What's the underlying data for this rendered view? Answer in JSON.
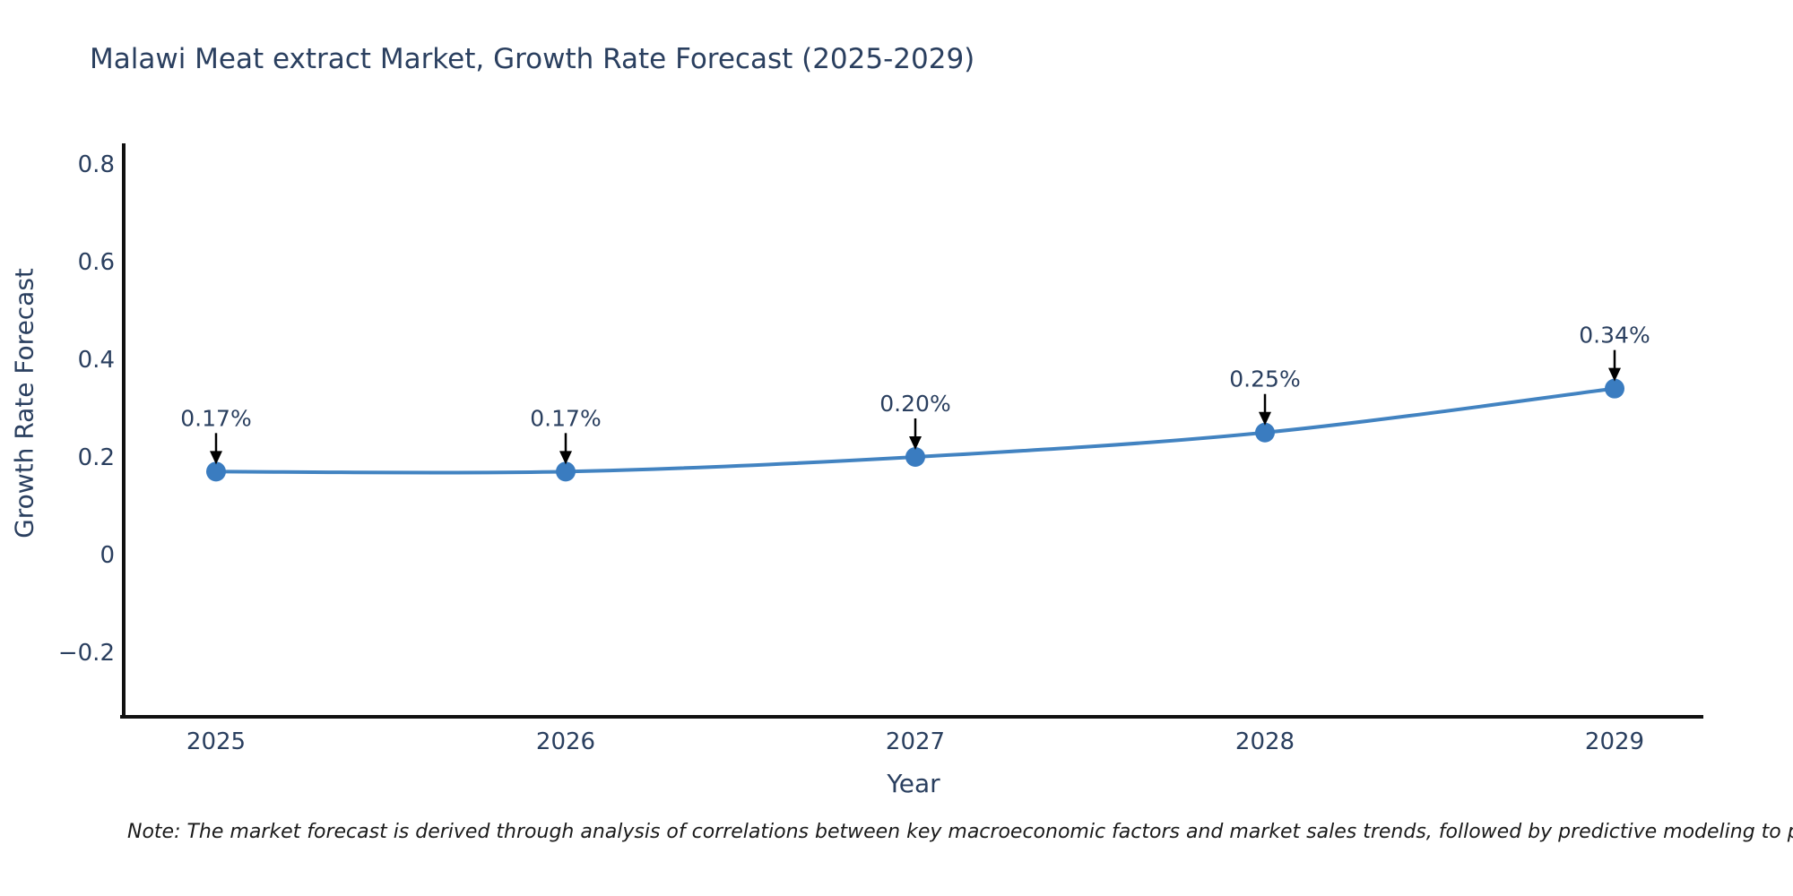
{
  "header": {
    "title": "Malawi Meat extract Market, Growth Rate Forecast (2025-2029)"
  },
  "chart_data": {
    "type": "line",
    "title": "Malawi Meat extract Market, Growth Rate Forecast (2025-2029)",
    "xlabel": "Year",
    "ylabel": "Growth Rate Forecast",
    "categories": [
      "2025",
      "2026",
      "2027",
      "2028",
      "2029"
    ],
    "series": [
      {
        "name": "Growth Rate Forecast",
        "values": [
          0.17,
          0.17,
          0.2,
          0.25,
          0.34
        ]
      }
    ],
    "point_labels": [
      "0.17%",
      "0.17%",
      "0.20%",
      "0.25%",
      "0.34%"
    ],
    "ytick_values": [
      0.8,
      0.6,
      0.4,
      0.2,
      0,
      -0.2
    ],
    "ytick_labels": [
      "0.8",
      "0.6",
      "0.4",
      "0.2",
      "0",
      "−0.2"
    ],
    "ylim": [
      -0.332,
      0.842
    ],
    "grid": false,
    "legend": false,
    "line_shape": "spline",
    "line_color": "#4283c1",
    "marker_color": "#3a7cc0",
    "axis_color": "#111111",
    "annotation_arrow_color": "#000000"
  },
  "footnote": {
    "text": "Note: The market forecast is derived through analysis of correlations between key macroeconomic factors and market sales trends, followed by predictive modeling to project future sal"
  }
}
